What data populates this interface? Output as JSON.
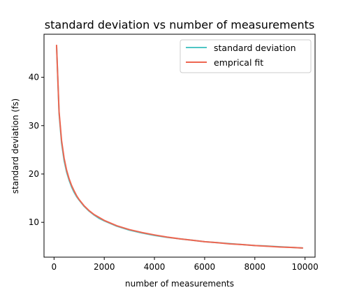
{
  "chart_data": {
    "type": "line",
    "title": "standard deviation vs number of measurements",
    "xlabel": "number of measurements",
    "ylabel": "standard deviation (fs)",
    "xlim": [
      -400,
      10400
    ],
    "ylim": [
      2.8,
      48.9
    ],
    "xticks": [
      0,
      2000,
      4000,
      6000,
      8000,
      10000
    ],
    "xtick_labels": [
      "0",
      "2000",
      "4000",
      "6000",
      "8000",
      "10000"
    ],
    "yticks": [
      10,
      20,
      30,
      40
    ],
    "ytick_labels": [
      "10",
      "20",
      "30",
      "40"
    ],
    "grid": false,
    "legend": {
      "placement": "upper-right",
      "entries": [
        "standard deviation",
        "emprical fit"
      ]
    },
    "series": [
      {
        "name": "standard deviation",
        "color": "#4fc6c5",
        "x": [
          100,
          200,
          300,
          400,
          500,
          600,
          700,
          800,
          900,
          1000,
          1200,
          1400,
          1600,
          1800,
          2000,
          2500,
          3000,
          3500,
          4000,
          4500,
          5000,
          5500,
          6000,
          6500,
          7000,
          7500,
          8000,
          8500,
          9000,
          9500,
          9900
        ],
        "y": [
          46.5,
          32.5,
          26.4,
          22.8,
          20.4,
          18.7,
          17.3,
          16.2,
          15.3,
          14.6,
          13.3,
          12.3,
          11.5,
          10.8,
          10.3,
          9.2,
          8.4,
          7.8,
          7.3,
          6.9,
          6.6,
          6.3,
          6.0,
          5.8,
          5.6,
          5.4,
          5.2,
          5.1,
          4.95,
          4.8,
          4.7
        ]
      },
      {
        "name": "emprical fit",
        "color": "#ee6651",
        "x": [
          100,
          200,
          300,
          400,
          500,
          600,
          700,
          800,
          900,
          1000,
          1200,
          1400,
          1600,
          1800,
          2000,
          2500,
          3000,
          3500,
          4000,
          4500,
          5000,
          5500,
          6000,
          6500,
          7000,
          7500,
          8000,
          8500,
          9000,
          9500,
          9900
        ],
        "y": [
          46.6,
          32.9,
          26.9,
          23.3,
          20.8,
          19.0,
          17.6,
          16.5,
          15.5,
          14.7,
          13.4,
          12.4,
          11.6,
          11.0,
          10.4,
          9.3,
          8.5,
          7.9,
          7.4,
          6.95,
          6.6,
          6.3,
          6.0,
          5.8,
          5.55,
          5.4,
          5.2,
          5.05,
          4.9,
          4.8,
          4.7
        ]
      }
    ]
  }
}
